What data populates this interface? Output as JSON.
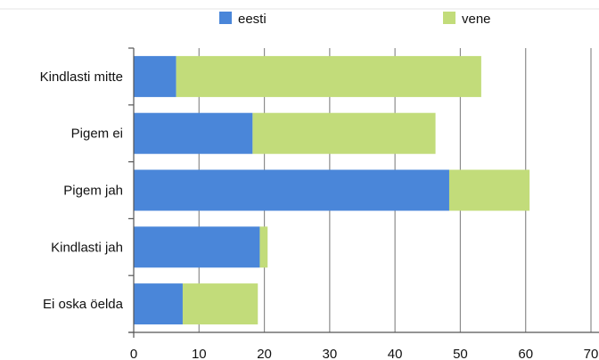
{
  "chart_data": {
    "type": "bar",
    "orientation": "horizontal",
    "stacked": true,
    "categories": [
      "Kindlasti mitte",
      "Pigem ei",
      "Pigem jah",
      "Kindlasti jah",
      "Ei oska öelda"
    ],
    "series": [
      {
        "name": "eesti",
        "color": "#4a86d9",
        "values": [
          6.5,
          18.2,
          48.3,
          19.3,
          7.5
        ]
      },
      {
        "name": "vene",
        "color": "#c2dc7a",
        "values": [
          46.7,
          28.0,
          12.3,
          1.2,
          11.5
        ]
      }
    ],
    "xlim": [
      0,
      70
    ],
    "xticks": [
      0,
      10,
      20,
      30,
      40,
      50,
      60,
      70
    ],
    "grid": true,
    "legend": "top",
    "title": "",
    "xlabel": "",
    "ylabel": ""
  }
}
